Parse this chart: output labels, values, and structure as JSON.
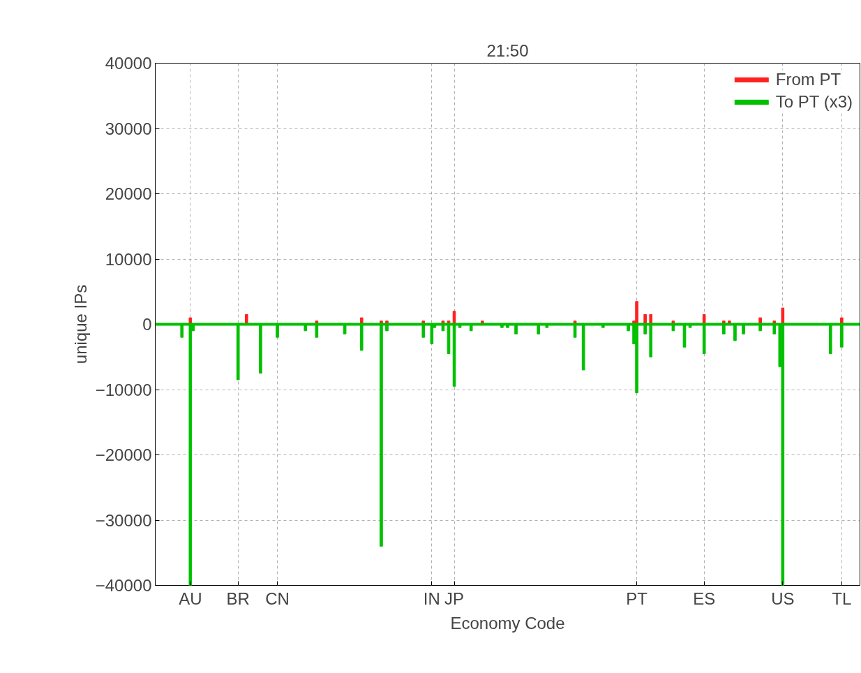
{
  "chart_data": {
    "type": "bar",
    "title": "21:50",
    "xlabel": "Economy Code",
    "ylabel": "unique IPs",
    "categories": [
      null,
      null,
      null,
      null,
      null,
      null,
      null,
      null,
      null,
      null,
      null,
      null,
      "AU",
      null,
      null,
      null,
      null,
      null,
      null,
      null,
      null,
      null,
      null,
      null,
      null,
      null,
      null,
      null,
      null,
      "BR",
      null,
      null,
      null,
      null,
      null,
      null,
      null,
      null,
      null,
      null,
      null,
      null,
      null,
      "CN",
      null,
      null,
      null,
      null,
      null,
      null,
      null,
      null,
      null,
      null,
      null,
      null,
      null,
      null,
      null,
      null,
      null,
      null,
      null,
      null,
      null,
      null,
      null,
      null,
      null,
      null,
      null,
      null,
      null,
      null,
      null,
      null,
      null,
      null,
      null,
      null,
      null,
      null,
      null,
      null,
      null,
      null,
      null,
      null,
      null,
      null,
      null,
      null,
      null,
      null,
      null,
      null,
      null,
      null,
      "IN",
      null,
      null,
      null,
      null,
      null,
      null,
      null,
      "JP",
      null,
      null,
      null,
      null,
      null,
      null,
      null,
      null,
      null,
      null,
      null,
      null,
      null,
      null,
      null,
      null,
      null,
      null,
      null,
      null,
      null,
      null,
      null,
      null,
      null,
      null,
      null,
      null,
      null,
      null,
      null,
      null,
      null,
      null,
      null,
      null,
      null,
      null,
      null,
      null,
      null,
      null,
      null,
      null,
      null,
      null,
      null,
      null,
      null,
      null,
      null,
      null,
      null,
      null,
      null,
      null,
      null,
      null,
      null,
      null,
      null,
      null,
      null,
      null,
      "PT",
      null,
      null,
      null,
      null,
      null,
      null,
      null,
      null,
      null,
      null,
      null,
      null,
      null,
      null,
      null,
      null,
      null,
      null,
      null,
      null,
      null,
      null,
      null,
      "ES",
      null,
      null,
      null,
      null,
      null,
      null,
      null,
      null,
      null,
      null,
      null,
      null,
      null,
      null,
      null,
      null,
      null,
      null,
      null,
      null,
      null,
      null,
      null,
      null,
      null,
      null,
      null,
      "US",
      null,
      null,
      null,
      null,
      null,
      null,
      null,
      null,
      null,
      null,
      null,
      null,
      null,
      null,
      null,
      null,
      null,
      null,
      null,
      null,
      "TL",
      null,
      null,
      null,
      null,
      null,
      null
    ],
    "ylim": [
      -40000,
      40000
    ],
    "yticks": [
      -40000,
      -30000,
      -20000,
      -10000,
      0,
      10000,
      20000,
      30000,
      40000
    ],
    "series": [
      {
        "name": "From PT",
        "color": "#ff2020",
        "values": [
          null,
          null,
          null,
          null,
          null,
          null,
          null,
          null,
          null,
          null,
          null,
          null,
          1000,
          null,
          null,
          null,
          null,
          null,
          null,
          null,
          null,
          null,
          null,
          null,
          null,
          null,
          null,
          null,
          null,
          null,
          null,
          null,
          1500,
          null,
          null,
          null,
          null,
          null,
          null,
          null,
          null,
          null,
          null,
          null,
          null,
          null,
          null,
          null,
          null,
          null,
          null,
          null,
          null,
          null,
          null,
          null,
          null,
          500,
          null,
          null,
          null,
          null,
          null,
          null,
          null,
          null,
          null,
          null,
          null,
          null,
          null,
          null,
          null,
          1000,
          null,
          null,
          null,
          null,
          null,
          null,
          500,
          null,
          500,
          null,
          null,
          null,
          null,
          null,
          null,
          null,
          null,
          null,
          null,
          null,
          null,
          500,
          null,
          null,
          null,
          null,
          null,
          null,
          500,
          null,
          500,
          null,
          2000,
          null,
          null,
          null,
          null,
          null,
          null,
          null,
          null,
          null,
          500,
          null,
          null,
          null,
          null,
          null,
          null,
          null,
          null,
          null,
          null,
          null,
          null,
          null,
          null,
          null,
          null,
          null,
          null,
          null,
          null,
          null,
          null,
          null,
          null,
          null,
          null,
          null,
          null,
          null,
          null,
          null,
          null,
          500,
          null,
          null,
          null,
          null,
          null,
          null,
          null,
          null,
          null,
          null,
          null,
          null,
          null,
          null,
          null,
          null,
          null,
          null,
          null,
          null,
          500,
          3500,
          null,
          null,
          1500,
          null,
          1500,
          null,
          null,
          null,
          null,
          null,
          null,
          null,
          500,
          null,
          null,
          null,
          null,
          null,
          null,
          null,
          null,
          null,
          null,
          1500,
          null,
          null,
          null,
          null,
          null,
          null,
          500,
          null,
          500,
          null,
          null,
          null,
          null,
          null,
          null,
          null,
          null,
          null,
          null,
          1000,
          null,
          null,
          null,
          null,
          500,
          null,
          null,
          2500,
          null,
          null,
          null,
          null,
          null,
          null,
          null,
          null,
          null,
          null,
          null,
          null,
          null,
          null,
          null,
          null,
          null,
          null,
          null,
          null,
          1000,
          null,
          null,
          null,
          null,
          null,
          null
        ]
      },
      {
        "name": "To PT (x3)",
        "color": "#00c000",
        "values": [
          null,
          null,
          null,
          null,
          null,
          null,
          null,
          null,
          null,
          -2000,
          null,
          null,
          -40000,
          -1000,
          null,
          null,
          null,
          null,
          null,
          null,
          null,
          null,
          null,
          null,
          null,
          null,
          null,
          null,
          null,
          -8500,
          null,
          null,
          null,
          null,
          null,
          null,
          null,
          -7500,
          null,
          null,
          null,
          null,
          null,
          -2000,
          null,
          null,
          null,
          null,
          null,
          null,
          null,
          null,
          null,
          -1000,
          null,
          null,
          null,
          -2000,
          null,
          null,
          null,
          null,
          null,
          null,
          null,
          null,
          null,
          -1500,
          null,
          null,
          null,
          null,
          null,
          -4000,
          null,
          null,
          null,
          null,
          null,
          null,
          -34000,
          null,
          -1000,
          null,
          null,
          null,
          null,
          null,
          null,
          null,
          null,
          null,
          null,
          null,
          null,
          -2000,
          null,
          null,
          -3000,
          -500,
          null,
          null,
          -1000,
          null,
          -4500,
          null,
          -9500,
          null,
          -500,
          null,
          null,
          null,
          -1000,
          null,
          null,
          null,
          null,
          null,
          null,
          null,
          null,
          null,
          null,
          -500,
          null,
          -500,
          null,
          null,
          -1500,
          null,
          null,
          null,
          null,
          null,
          null,
          null,
          -1500,
          null,
          null,
          -500,
          null,
          null,
          null,
          null,
          null,
          null,
          null,
          null,
          null,
          -2000,
          null,
          null,
          -7000,
          null,
          null,
          null,
          null,
          null,
          null,
          -500,
          null,
          null,
          null,
          null,
          null,
          null,
          null,
          null,
          -1000,
          null,
          -3000,
          -10500,
          null,
          null,
          -1500,
          null,
          -5000,
          null,
          null,
          null,
          null,
          null,
          null,
          null,
          -1000,
          null,
          null,
          null,
          -3500,
          null,
          -500,
          null,
          null,
          null,
          null,
          -4500,
          null,
          null,
          null,
          null,
          null,
          null,
          -1500,
          null,
          null,
          null,
          -2500,
          null,
          null,
          -1500,
          null,
          null,
          null,
          null,
          null,
          -1000,
          null,
          null,
          null,
          null,
          -1500,
          null,
          -6500,
          -40000,
          null,
          null,
          null,
          null,
          null,
          null,
          null,
          null,
          null,
          null,
          null,
          null,
          null,
          null,
          null,
          null,
          -4500,
          null,
          null,
          null,
          -3500,
          null,
          null,
          null,
          null,
          null,
          null
        ]
      }
    ],
    "ref_lines": [
      {
        "axis": "y",
        "value": 0,
        "color": "#00c000"
      }
    ],
    "grid": true,
    "legend": "top right"
  }
}
